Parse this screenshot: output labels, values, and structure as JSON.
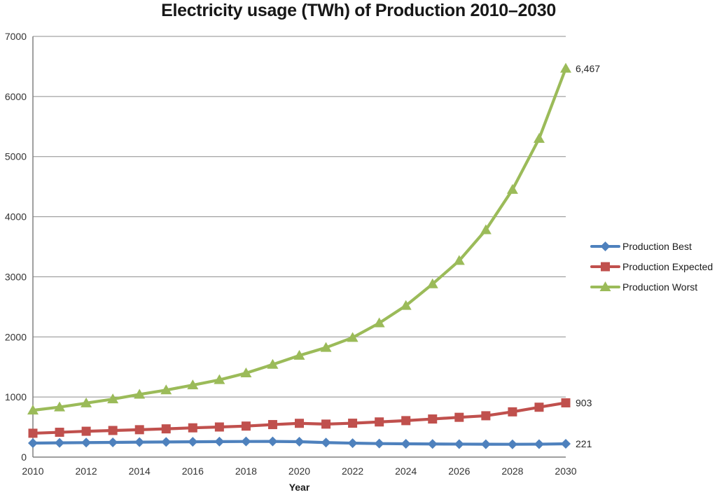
{
  "chart_data": {
    "type": "line",
    "title": "Electricity usage (TWh) of Production 2010–2030",
    "xlabel": "Year",
    "ylabel": "",
    "x": [
      2010,
      2011,
      2012,
      2013,
      2014,
      2015,
      2016,
      2017,
      2018,
      2019,
      2020,
      2021,
      2022,
      2023,
      2024,
      2025,
      2026,
      2027,
      2028,
      2029,
      2030
    ],
    "x_tick_labels": [
      2010,
      2012,
      2014,
      2016,
      2018,
      2020,
      2022,
      2024,
      2026,
      2028,
      2030
    ],
    "ylim": [
      0,
      7000
    ],
    "y_ticks": [
      0,
      1000,
      2000,
      3000,
      4000,
      5000,
      6000,
      7000
    ],
    "grid": "horizontal",
    "legend_position": "right",
    "series": [
      {
        "name": "Production Best",
        "color": "#4E81BD",
        "marker": "diamond",
        "end_label": "221",
        "values": [
          233,
          237,
          241,
          245,
          249,
          252,
          255,
          258,
          260,
          261,
          256,
          242,
          232,
          225,
          221,
          218,
          216,
          214,
          213,
          215,
          221
        ]
      },
      {
        "name": "Production Expected",
        "color": "#C0504D",
        "marker": "square",
        "end_label": "903",
        "values": [
          397,
          413,
          430,
          443,
          456,
          470,
          487,
          501,
          516,
          541,
          562,
          549,
          564,
          585,
          607,
          634,
          662,
          688,
          753,
          830,
          903
        ]
      },
      {
        "name": "Production Worst",
        "color": "#9BBB59",
        "marker": "triangle",
        "end_label": "6,467",
        "values": [
          779,
          832,
          898,
          965,
          1043,
          1115,
          1198,
          1285,
          1397,
          1540,
          1690,
          1822,
          1988,
          2230,
          2520,
          2880,
          3268,
          3780,
          4450,
          5300,
          6467
        ]
      }
    ],
    "colors": {
      "grid": "#8C8C8C",
      "axis": "#808080",
      "tick_text": "#333333",
      "end_label_text": "#262626",
      "legend_text": "#1a1a1a"
    }
  }
}
